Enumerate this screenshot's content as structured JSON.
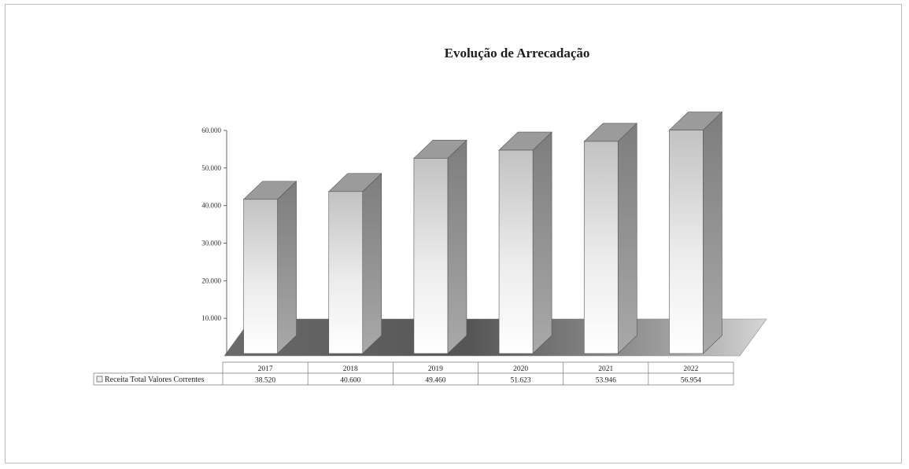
{
  "chart_data": {
    "type": "bar",
    "title": "Evolução de Arrecadação",
    "xlabel": "",
    "ylabel": "",
    "categories": [
      "2017",
      "2018",
      "2019",
      "2020",
      "2021",
      "2022"
    ],
    "series": [
      {
        "name": "Receita Total Valores Correntes",
        "values": [
          38.52,
          40.6,
          49.46,
          51.623,
          53.946,
          56.954
        ],
        "value_labels": [
          "38.520",
          "40.600",
          "49.460",
          "51.623",
          "53.946",
          "56.954"
        ],
        "color": "#dcdcdc"
      }
    ],
    "y_ticks": [
      {
        "value": 10,
        "label": "10.000"
      },
      {
        "value": 20,
        "label": "20.000"
      },
      {
        "value": 30,
        "label": "30.000"
      },
      {
        "value": 40,
        "label": "40.000"
      },
      {
        "value": 50,
        "label": "50.000"
      },
      {
        "value": 60,
        "label": "60.000"
      }
    ],
    "ylim": [
      0,
      60
    ],
    "grid": false,
    "legend": "data-table-left",
    "style": "3d-column",
    "colors": {
      "bar_front_top": "#c4c4c4",
      "bar_front_bottom": "#ffffff",
      "bar_side": "#8f8f8f",
      "bar_top": "#9a9a9a",
      "floor_dark": "#5a5a5a",
      "floor_light": "#d0d0d0"
    }
  }
}
